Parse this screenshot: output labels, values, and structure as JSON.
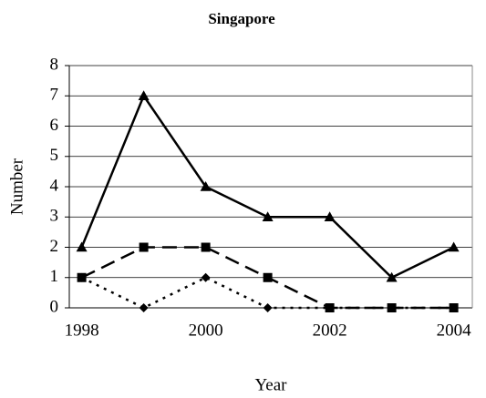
{
  "chart_data": {
    "type": "line",
    "title": "Singapore",
    "x_label": "Year",
    "y_label": "Number",
    "x": [
      1998,
      1999,
      2000,
      2001,
      2002,
      2003,
      2004
    ],
    "xlim": [
      1997.8,
      2004.3
    ],
    "xticks": [
      1998,
      2000,
      2002,
      2004
    ],
    "ylim": [
      0,
      8
    ],
    "yticks": [
      0,
      1,
      2,
      3,
      4,
      5,
      6,
      7,
      8
    ],
    "grid": true,
    "series": [
      {
        "color": "#000000",
        "marker": "triangle",
        "dash": "solid",
        "values": [
          2,
          7,
          4,
          3,
          3,
          1,
          2
        ]
      },
      {
        "color": "#000000",
        "marker": "square",
        "dash": "dashed",
        "values": [
          1,
          2,
          2,
          1,
          0,
          0,
          0
        ]
      },
      {
        "color": "#000000",
        "marker": "diamond",
        "dash": "dotted",
        "values": [
          1,
          0,
          1,
          0,
          0,
          0,
          0
        ]
      }
    ]
  }
}
